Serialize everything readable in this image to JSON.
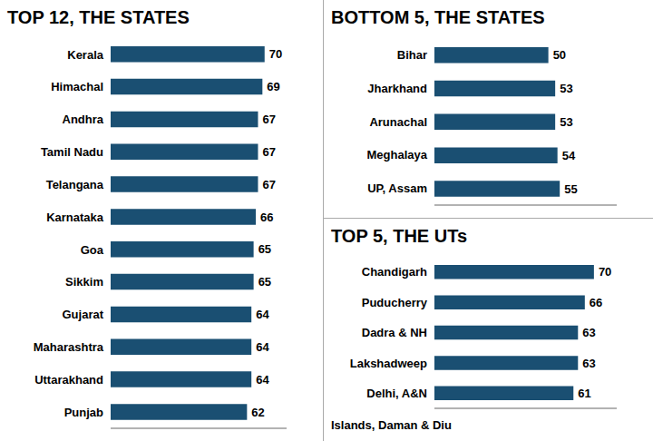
{
  "chart_data": [
    {
      "type": "bar",
      "orientation": "horizontal",
      "title": "TOP 12, THE STATES",
      "categories": [
        "Kerala",
        "Himachal",
        "Andhra",
        "Tamil Nadu",
        "Telangana",
        "Karnataka",
        "Goa",
        "Sikkim",
        "Gujarat",
        "Maharashtra",
        "Uttarakhand",
        "Punjab"
      ],
      "values": [
        70,
        69,
        67,
        67,
        67,
        66,
        65,
        65,
        64,
        64,
        64,
        62
      ],
      "color": "#1a4f72",
      "xlim": [
        0,
        80
      ],
      "data_labels": true,
      "tick_labels": "y",
      "grid": false
    },
    {
      "type": "bar",
      "orientation": "horizontal",
      "title": "BOTTOM 5, THE STATES",
      "categories": [
        "Bihar",
        "Jharkhand",
        "Arunachal",
        "Meghalaya",
        "UP, Assam"
      ],
      "values": [
        50,
        53,
        53,
        54,
        55
      ],
      "color": "#1a4f72",
      "xlim": [
        0,
        80
      ],
      "data_labels": true,
      "tick_labels": "y",
      "grid": false
    },
    {
      "type": "bar",
      "orientation": "horizontal",
      "title": "TOP 5, THE UTs",
      "categories": [
        "Chandigarh",
        "Puducherry",
        "Dadra & NH",
        "Lakshadweep",
        "Delhi, A&N"
      ],
      "values": [
        70,
        66,
        63,
        63,
        61
      ],
      "annotations": [
        "Islands, Daman & Diu"
      ],
      "color": "#1a4f72",
      "xlim": [
        0,
        80
      ],
      "data_labels": true,
      "tick_labels": "y",
      "grid": false
    }
  ]
}
